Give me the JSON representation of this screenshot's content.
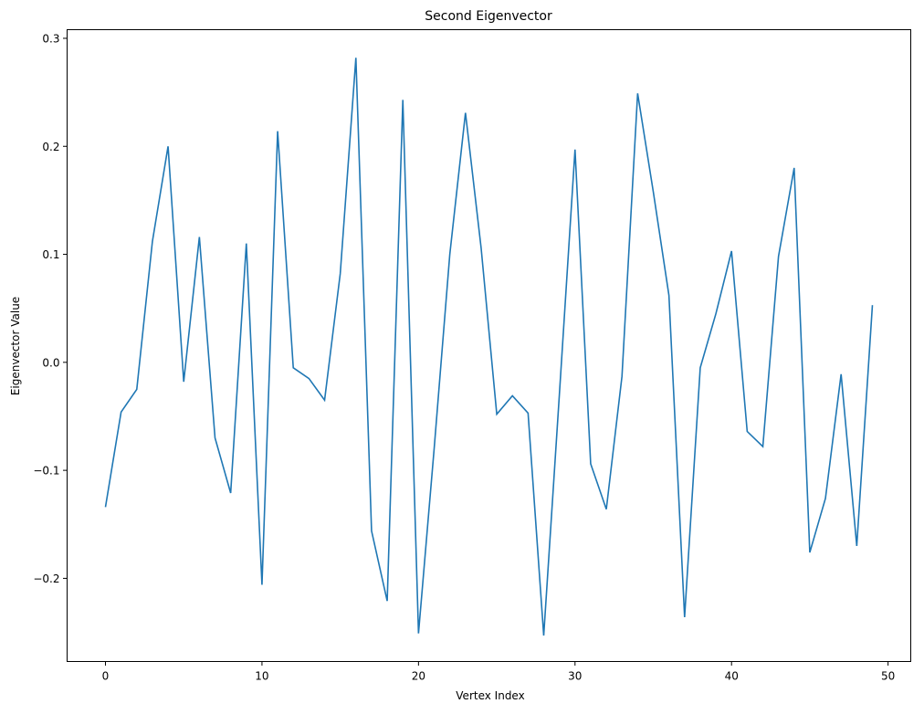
{
  "chart_data": {
    "type": "line",
    "title": "Second Eigenvector",
    "xlabel": "Vertex Index",
    "ylabel": "Eigenvector Value",
    "xlim": [
      -2.45,
      51.45
    ],
    "ylim": [
      -0.277,
      0.308
    ],
    "xticks": [
      0,
      10,
      20,
      30,
      40,
      50
    ],
    "xtick_labels": [
      "0",
      "10",
      "20",
      "30",
      "40",
      "50"
    ],
    "yticks": [
      -0.2,
      -0.1,
      0.0,
      0.1,
      0.2,
      0.3
    ],
    "ytick_labels": [
      "−0.2",
      "−0.1",
      "0.0",
      "0.1",
      "0.2",
      "0.3"
    ],
    "grid": false,
    "legend": null,
    "series": [
      {
        "name": "Second Eigenvector",
        "color": "#1f77b4",
        "x": [
          0,
          1,
          2,
          3,
          4,
          5,
          6,
          7,
          8,
          9,
          10,
          11,
          12,
          13,
          14,
          15,
          16,
          17,
          18,
          19,
          20,
          21,
          22,
          23,
          24,
          25,
          26,
          27,
          28,
          29,
          30,
          31,
          32,
          33,
          34,
          35,
          36,
          37,
          38,
          39,
          40,
          41,
          42,
          43,
          44,
          45,
          46,
          47,
          48,
          49
        ],
        "values": [
          -0.134,
          -0.046,
          -0.025,
          0.112,
          0.2,
          -0.018,
          0.116,
          -0.07,
          -0.121,
          0.11,
          -0.206,
          0.214,
          -0.005,
          -0.015,
          -0.035,
          0.082,
          0.282,
          -0.156,
          -0.221,
          0.243,
          -0.251,
          -0.08,
          0.1,
          0.231,
          0.106,
          -0.048,
          -0.031,
          -0.047,
          -0.253,
          -0.03,
          0.197,
          -0.094,
          -0.136,
          -0.013,
          0.249,
          0.158,
          0.062,
          -0.236,
          -0.005,
          0.045,
          0.103,
          -0.064,
          -0.078,
          0.098,
          0.18,
          -0.176,
          -0.126,
          -0.011,
          -0.17,
          0.053
        ]
      }
    ]
  }
}
